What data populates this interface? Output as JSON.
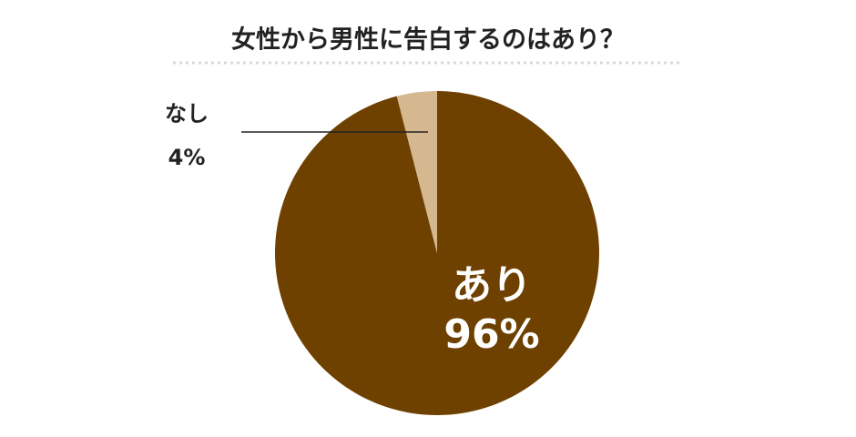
{
  "chart_data": {
    "type": "pie",
    "title": "女性から男性に告白するのはあり？",
    "categories": [
      "あり",
      "なし"
    ],
    "values": [
      96,
      4
    ],
    "value_labels": [
      "96%",
      "4%"
    ],
    "colors": [
      "#6e4100",
      "#d6b890"
    ]
  }
}
